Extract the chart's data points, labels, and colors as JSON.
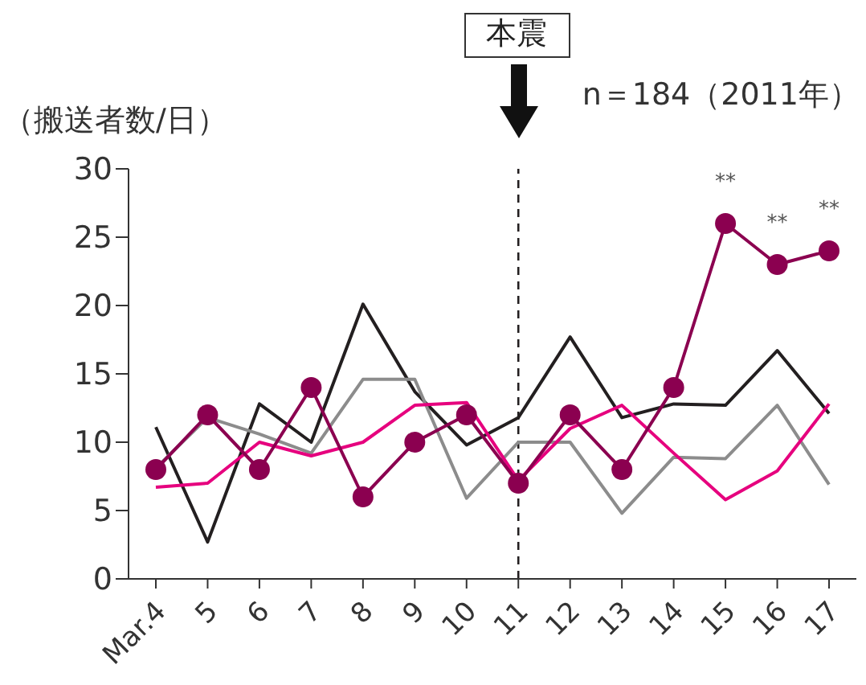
{
  "chart_data": {
    "type": "line",
    "ylabel": "（搬送者数/日）",
    "categories": [
      "Mar.4",
      "5",
      "6",
      "7",
      "8",
      "9",
      "10",
      "11",
      "12",
      "13",
      "14",
      "15",
      "16",
      "17"
    ],
    "series": [
      {
        "color": "#231f20",
        "marker": "none",
        "values": [
          11.1,
          2.7,
          12.8,
          10,
          20.1,
          13.7,
          9.8,
          11.8,
          17.7,
          11.8,
          12.8,
          12.7,
          16.7,
          12.1
        ]
      },
      {
        "color": "#8c8c8c",
        "marker": "none",
        "values": [
          8.1,
          11.8,
          10.6,
          9.2,
          14.6,
          14.6,
          5.9,
          10,
          10,
          4.8,
          8.9,
          8.8,
          12.7,
          6.9
        ]
      },
      {
        "color": "#e6007e",
        "marker": "none",
        "values": [
          6.7,
          7,
          10,
          9,
          10,
          12.7,
          12.9,
          7.2,
          11,
          12.7,
          9.2,
          5.8,
          7.9,
          12.8
        ]
      },
      {
        "color": "#8b0050",
        "marker": "circle",
        "values": [
          8,
          12,
          8,
          14,
          6,
          10,
          12,
          7,
          12,
          8,
          14,
          26,
          23,
          24
        ]
      }
    ],
    "ylim": [
      0,
      30
    ],
    "yticks": [
      0,
      5,
      10,
      15,
      20,
      25,
      30
    ],
    "grid": false,
    "ref_lines": [
      {
        "axis": "x",
        "value": "11",
        "label": "本震",
        "line_style": "dashed",
        "color": "#231f20"
      }
    ],
    "annotations": [
      "n＝184（2011年）",
      {
        "text": "**",
        "x": "15",
        "y": 26
      },
      {
        "text": "**",
        "x": "16",
        "y": 23
      },
      {
        "text": "**",
        "x": "17",
        "y": 24
      }
    ]
  }
}
